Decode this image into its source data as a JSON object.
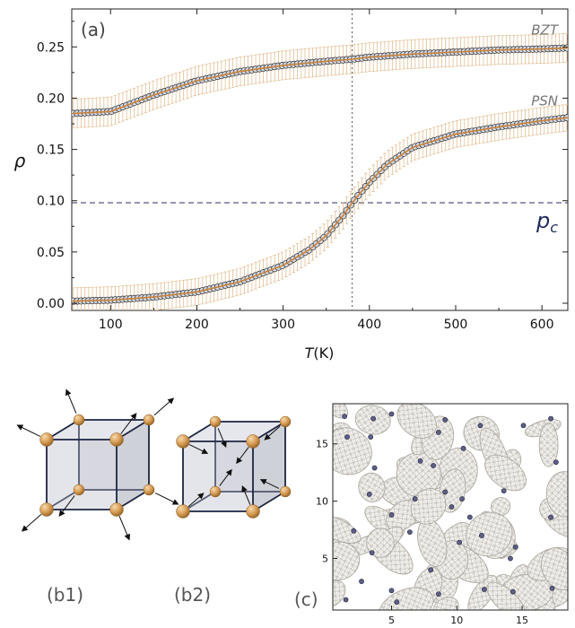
{
  "figure": {
    "panel_a_label": "(a)",
    "panel_b1_label": "(b1)",
    "panel_b2_label": "(b2)",
    "panel_c_label": "(c)"
  },
  "chart_data": [
    {
      "panel": "(a)",
      "type": "line",
      "xlabel": "T(K)",
      "ylabel": "ρ",
      "xlim": [
        55,
        630
      ],
      "ylim": [
        -0.007,
        0.287
      ],
      "x_ticks": [
        100,
        200,
        300,
        400,
        500,
        600
      ],
      "y_ticks": [
        0.0,
        0.05,
        0.1,
        0.15,
        0.2,
        0.25
      ],
      "y_tick_labels": [
        "0.00",
        "0.05",
        "0.10",
        "0.15",
        "0.20",
        "0.25"
      ],
      "grid": false,
      "reference_lines": [
        {
          "orientation": "horizontal",
          "value": 0.098,
          "style": "dashed",
          "label": "p",
          "label_sub": "c"
        },
        {
          "orientation": "vertical",
          "value": 380,
          "style": "dotted"
        }
      ],
      "colors": {
        "fit_line": "#c8823a",
        "marker_fill": "#d4d8e2",
        "marker_edge": "#333333",
        "error_bar": "#e3bf96",
        "ref_line": "#2a2f5a"
      },
      "series": [
        {
          "name": "BZT",
          "x": [
            55,
            100,
            150,
            200,
            250,
            300,
            350,
            380,
            400,
            450,
            500,
            550,
            600,
            630
          ],
          "y": [
            0.185,
            0.187,
            0.203,
            0.217,
            0.226,
            0.232,
            0.236,
            0.238,
            0.24,
            0.243,
            0.245,
            0.247,
            0.248,
            0.249
          ],
          "error": 0.014
        },
        {
          "name": "PSN",
          "x": [
            55,
            100,
            150,
            200,
            250,
            300,
            330,
            350,
            370,
            380,
            400,
            420,
            450,
            500,
            550,
            600,
            630
          ],
          "y": [
            0.002,
            0.003,
            0.006,
            0.011,
            0.021,
            0.037,
            0.052,
            0.066,
            0.086,
            0.098,
            0.118,
            0.135,
            0.152,
            0.165,
            0.172,
            0.178,
            0.181
          ],
          "error": 0.013
        }
      ]
    },
    {
      "panel": "(c)",
      "type": "scatter",
      "xlim": [
        0.5,
        18.5
      ],
      "ylim": [
        0.5,
        18.5
      ],
      "x_ticks": [
        5,
        10,
        15
      ],
      "y_ticks": [
        5,
        10,
        15
      ],
      "points": [
        [
          1.4,
          17.4
        ],
        [
          1.6,
          15.6
        ],
        [
          3.6,
          17.2
        ],
        [
          3.4,
          15.6
        ],
        [
          5.0,
          17.6
        ],
        [
          8.6,
          16.0
        ],
        [
          9.1,
          17.1
        ],
        [
          15.1,
          16.6
        ],
        [
          17.2,
          17.2
        ],
        [
          11.8,
          16.6
        ],
        [
          10.5,
          14.6
        ],
        [
          8.2,
          13.1
        ],
        [
          3.7,
          12.9
        ],
        [
          7.2,
          13.5
        ],
        [
          3.3,
          10.6
        ],
        [
          6.8,
          10.2
        ],
        [
          9.1,
          10.8
        ],
        [
          10.4,
          10.2
        ],
        [
          9.6,
          9.5
        ],
        [
          11.0,
          8.6
        ],
        [
          5.0,
          8.8
        ],
        [
          13.6,
          10.9
        ],
        [
          17.2,
          8.6
        ],
        [
          2.1,
          7.4
        ],
        [
          11.9,
          7.0
        ],
        [
          6.4,
          7.3
        ],
        [
          10.2,
          6.4
        ],
        [
          14.5,
          6.0
        ],
        [
          3.5,
          5.5
        ],
        [
          14.1,
          5.0
        ],
        [
          8.0,
          4.0
        ],
        [
          2.7,
          3.0
        ],
        [
          5.0,
          2.2
        ],
        [
          8.6,
          1.9
        ],
        [
          14.3,
          2.1
        ],
        [
          17.3,
          2.4
        ],
        [
          12.1,
          2.3
        ],
        [
          1.5,
          1.4
        ],
        [
          5.4,
          1.2
        ],
        [
          17.6,
          13.4
        ]
      ]
    }
  ]
}
